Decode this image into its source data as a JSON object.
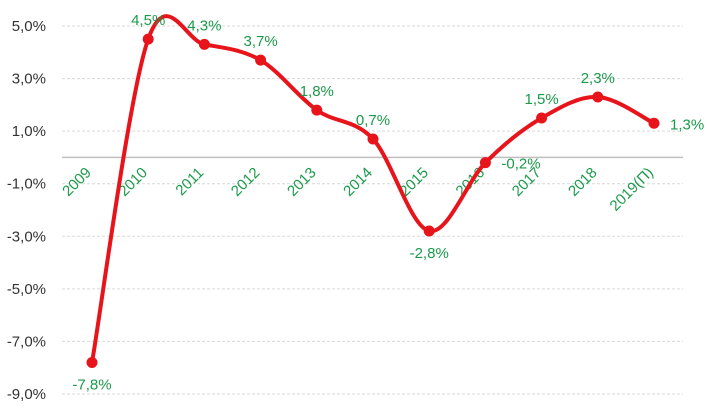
{
  "chart_data": {
    "type": "line",
    "title": "",
    "xlabel": "",
    "ylabel": "",
    "categories": [
      "2009",
      "2010",
      "2011",
      "2012",
      "2013",
      "2014",
      "2015",
      "2016",
      "2017",
      "2018",
      "2019(П)"
    ],
    "series": [
      {
        "values": [
          -7.8,
          4.5,
          4.3,
          3.7,
          1.8,
          0.7,
          -2.8,
          -0.2,
          1.5,
          2.3,
          1.3
        ],
        "data_labels": [
          "-7,8%",
          "4,5%",
          "4,3%",
          "3,7%",
          "1,8%",
          "0,7%",
          "-2,8%",
          "-0,2%",
          "1,5%",
          "2,3%",
          "1,3%"
        ],
        "color": "#e8141b"
      }
    ],
    "ylim": [
      -9,
      5
    ],
    "yticks": [
      5,
      3,
      1,
      -1,
      -3,
      -5,
      -7,
      -9
    ],
    "ytick_labels": [
      "5,0%",
      "3,0%",
      "1,0%",
      "-1,0%",
      "-3,0%",
      "-5,0%",
      "-7,0%",
      "-9,0%"
    ],
    "grid": true,
    "smooth": true,
    "zero_line": true,
    "legend": "none",
    "colors": {
      "line": "#e8141b",
      "labels": "#1a9a4a",
      "grid": "#d9d9d9",
      "zero_line": "#bfbfbf",
      "axis_text": "#333333"
    }
  }
}
